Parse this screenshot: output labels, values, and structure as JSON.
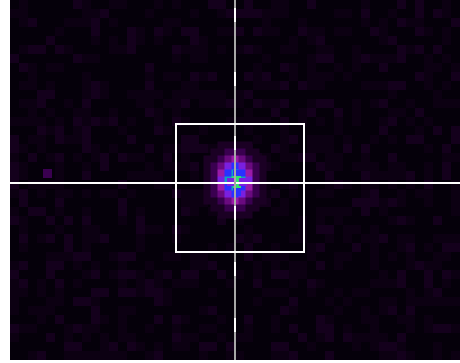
{
  "viewer": {
    "kind": "beam-profile-view",
    "palette": [
      "#05000a",
      "#1b0024",
      "#3a0050",
      "#6a0a80",
      "#9a1aa8",
      "#7a20e0",
      "#2a30ff",
      "#10a0c0",
      "#30e070"
    ],
    "overlay_color": "#ffffff",
    "crosshair_color": "#ffffff",
    "marker_color": "#a8a8a8",
    "roi_color": "#ffffff"
  }
}
